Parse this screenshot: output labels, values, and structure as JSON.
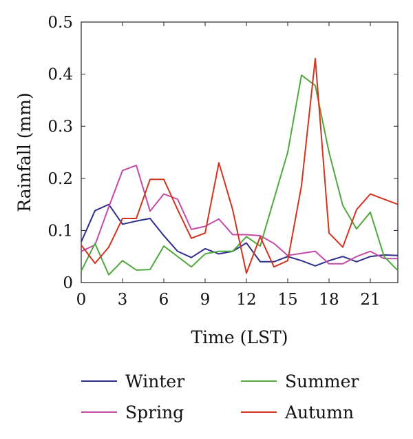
{
  "chart_data": {
    "type": "line",
    "xlabel": "Time (LST)",
    "ylabel": "Rainfall (mm)",
    "xlim": [
      0,
      23
    ],
    "ylim": [
      0,
      0.5
    ],
    "xticks": [
      0,
      3,
      6,
      9,
      12,
      15,
      18,
      21
    ],
    "xtick_labels": [
      "0",
      "3",
      "6",
      "9",
      "12",
      "15",
      "18",
      "21"
    ],
    "yticks": [
      0,
      0.1,
      0.2,
      0.3,
      0.4,
      0.5
    ],
    "ytick_labels": [
      "0",
      "0.1",
      "0.2",
      "0.3",
      "0.4",
      "0.5"
    ],
    "grid": false,
    "legend_position": "bottom",
    "x": [
      0,
      1,
      2,
      3,
      4,
      5,
      6,
      7,
      8,
      9,
      10,
      11,
      12,
      13,
      14,
      15,
      16,
      17,
      18,
      19,
      20,
      21,
      22,
      23
    ],
    "series": [
      {
        "name": "Winter",
        "color": "#2e2e8c",
        "values": [
          0.078,
          0.138,
          0.15,
          0.112,
          0.118,
          0.123,
          0.09,
          0.06,
          0.048,
          0.065,
          0.055,
          0.06,
          0.076,
          0.04,
          0.04,
          0.05,
          0.042,
          0.032,
          0.042,
          0.05,
          0.04,
          0.05,
          0.053,
          0.052
        ]
      },
      {
        "name": "Spring",
        "color": "#c44aa8",
        "values": [
          0.06,
          0.072,
          0.145,
          0.215,
          0.225,
          0.137,
          0.17,
          0.16,
          0.102,
          0.108,
          0.122,
          0.092,
          0.092,
          0.09,
          0.075,
          0.052,
          0.056,
          0.06,
          0.036,
          0.036,
          0.05,
          0.06,
          0.046,
          0.046
        ]
      },
      {
        "name": "Summer",
        "color": "#4ea83c",
        "values": [
          0.022,
          0.075,
          0.015,
          0.042,
          0.024,
          0.025,
          0.07,
          0.05,
          0.03,
          0.055,
          0.06,
          0.06,
          0.088,
          0.07,
          0.16,
          0.25,
          0.398,
          0.378,
          0.25,
          0.148,
          0.103,
          0.135,
          0.05,
          0.023
        ]
      },
      {
        "name": "Autumn",
        "color": "#d2321e",
        "values": [
          0.072,
          0.037,
          0.068,
          0.123,
          0.123,
          0.198,
          0.198,
          0.14,
          0.085,
          0.095,
          0.23,
          0.14,
          0.018,
          0.088,
          0.03,
          0.042,
          0.186,
          0.43,
          0.095,
          0.068,
          0.14,
          0.17,
          0.16,
          0.15
        ]
      }
    ]
  }
}
